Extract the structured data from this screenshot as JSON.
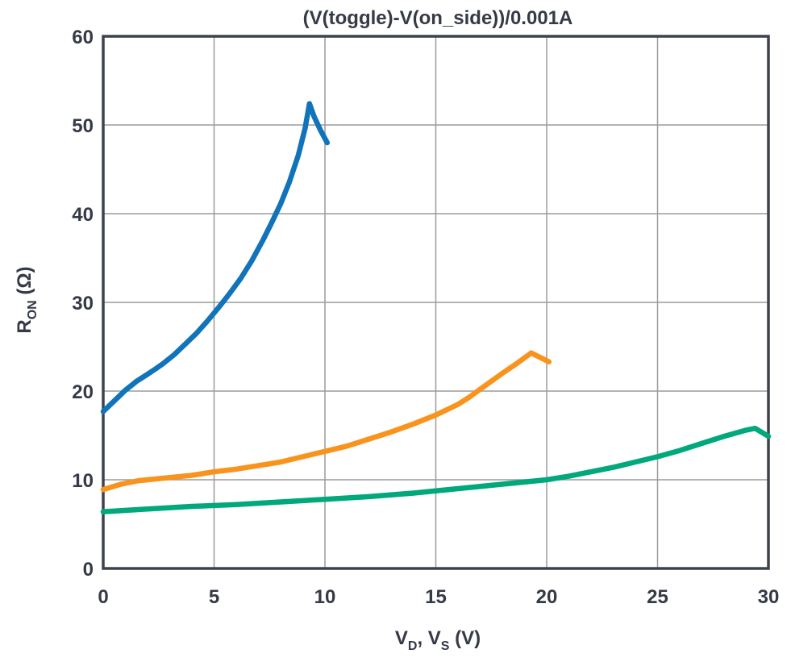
{
  "chart_data": {
    "type": "line",
    "title": "(V(toggle)-V(on_side))/0.001A",
    "xlabel": "VD, VS (V)",
    "ylabel": "RON (Ω)",
    "xlabel_parts": {
      "v1": "V",
      "s1": "D",
      "sep": ", V",
      "s2": "S",
      "unit": " (V)"
    },
    "ylabel_parts": {
      "base": "R",
      "sub": "ON",
      "unit": " (Ω)"
    },
    "xlim": [
      0,
      30
    ],
    "ylim": [
      0,
      60
    ],
    "xticks": [
      0,
      5,
      10,
      15,
      20,
      25,
      30
    ],
    "yticks": [
      0,
      10,
      20,
      30,
      40,
      50,
      60
    ],
    "grid": true,
    "legend": "none",
    "colors": {
      "text": "#353a46",
      "grid": "#9b9b9b",
      "frame": "#3d424d",
      "background": "#ffffff"
    },
    "series": [
      {
        "name": "blue-curve",
        "color": "#1173ba",
        "points": [
          [
            0,
            17.7
          ],
          [
            0.5,
            18.9
          ],
          [
            1,
            20.1
          ],
          [
            1.5,
            21.1
          ],
          [
            2,
            21.9
          ],
          [
            2.3,
            22.4
          ],
          [
            2.7,
            23.1
          ],
          [
            3.2,
            24.1
          ],
          [
            3.7,
            25.3
          ],
          [
            4.2,
            26.5
          ],
          [
            4.7,
            27.9
          ],
          [
            5.2,
            29.4
          ],
          [
            5.7,
            31.0
          ],
          [
            6.2,
            32.7
          ],
          [
            6.7,
            34.7
          ],
          [
            7.2,
            37.0
          ],
          [
            7.6,
            39.0
          ],
          [
            8,
            41.1
          ],
          [
            8.4,
            43.6
          ],
          [
            8.8,
            46.6
          ],
          [
            9.1,
            49.6
          ],
          [
            9.3,
            52.4
          ],
          [
            9.5,
            51.0
          ],
          [
            9.8,
            49.4
          ],
          [
            10.1,
            48.0
          ]
        ]
      },
      {
        "name": "orange-curve",
        "color": "#f8941d",
        "points": [
          [
            0,
            8.9
          ],
          [
            0.8,
            9.5
          ],
          [
            1.6,
            9.9
          ],
          [
            2.4,
            10.1
          ],
          [
            3.2,
            10.3
          ],
          [
            4,
            10.5
          ],
          [
            5,
            10.9
          ],
          [
            6,
            11.2
          ],
          [
            7,
            11.6
          ],
          [
            8,
            12.0
          ],
          [
            9,
            12.6
          ],
          [
            10,
            13.2
          ],
          [
            11,
            13.8
          ],
          [
            12,
            14.6
          ],
          [
            13,
            15.4
          ],
          [
            14,
            16.3
          ],
          [
            15,
            17.3
          ],
          [
            16,
            18.5
          ],
          [
            16.5,
            19.3
          ],
          [
            17,
            20.2
          ],
          [
            18,
            22.0
          ],
          [
            18.7,
            23.2
          ],
          [
            19.3,
            24.3
          ],
          [
            20.1,
            23.3
          ]
        ]
      },
      {
        "name": "green-curve",
        "color": "#00a87c",
        "points": [
          [
            0,
            6.4
          ],
          [
            2,
            6.7
          ],
          [
            4,
            7.0
          ],
          [
            6,
            7.2
          ],
          [
            8,
            7.5
          ],
          [
            10,
            7.8
          ],
          [
            12,
            8.1
          ],
          [
            14,
            8.5
          ],
          [
            16,
            9.0
          ],
          [
            18,
            9.5
          ],
          [
            20,
            10.0
          ],
          [
            21,
            10.4
          ],
          [
            22,
            10.9
          ],
          [
            23,
            11.4
          ],
          [
            24,
            12.0
          ],
          [
            25,
            12.6
          ],
          [
            26,
            13.3
          ],
          [
            27,
            14.1
          ],
          [
            28,
            14.9
          ],
          [
            29,
            15.6
          ],
          [
            29.4,
            15.8
          ],
          [
            30,
            14.9
          ]
        ]
      }
    ]
  }
}
